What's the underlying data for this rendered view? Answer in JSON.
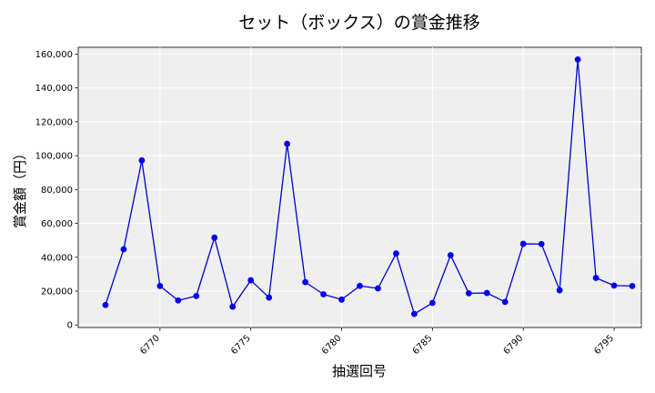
{
  "chart_data": {
    "type": "line",
    "title": "セット（ボックス）の賞金推移",
    "xlabel": "抽選回号",
    "ylabel": "賞金額（円）",
    "xlim": [
      6765.5,
      6796.5
    ],
    "ylim": [
      -1500,
      164000
    ],
    "xticks": [
      6770,
      6775,
      6780,
      6785,
      6790,
      6795
    ],
    "yticks": [
      0,
      20000,
      40000,
      60000,
      80000,
      100000,
      120000,
      140000,
      160000
    ],
    "ytick_labels": [
      "0",
      "20,000",
      "40,000",
      "60,000",
      "80,000",
      "100,000",
      "120,000",
      "140,000",
      "160,000"
    ],
    "grid": true,
    "colors": {
      "line": "#0000cc",
      "marker": "#0000ee",
      "plot_bg": "#efefef",
      "grid": "#ffffff"
    },
    "x": [
      6767,
      6768,
      6769,
      6770,
      6771,
      6772,
      6773,
      6774,
      6775,
      6776,
      6777,
      6778,
      6779,
      6780,
      6781,
      6782,
      6783,
      6784,
      6785,
      6786,
      6787,
      6788,
      6789,
      6790,
      6791,
      6792,
      6793,
      6794,
      6795,
      6796
    ],
    "series": [
      {
        "values": [
          11800,
          44700,
          97200,
          23000,
          14500,
          17100,
          51600,
          10800,
          26400,
          16200,
          107000,
          25300,
          18100,
          15000,
          23100,
          21600,
          42200,
          6500,
          13000,
          41200,
          18700,
          18900,
          13600,
          47900,
          47800,
          20500,
          156800,
          27800,
          23300,
          23000
        ]
      }
    ]
  }
}
